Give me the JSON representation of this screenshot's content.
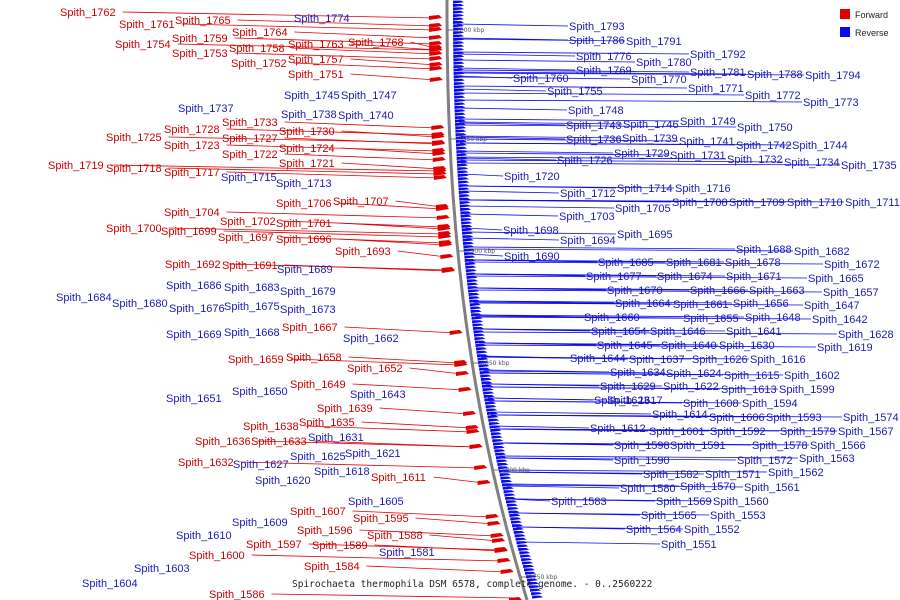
{
  "colors": {
    "forward": "#e00000",
    "reverse": "#0a0af0",
    "forward_text": "#cc0000",
    "reverse_text": "#1a1ab3",
    "backbone": "#808080"
  },
  "legend": {
    "forward": "Forward",
    "reverse": "Reverse"
  },
  "caption": "Spirochaeta thermophila DSM 6578, complete genome. - 0..2560222",
  "ticks": [
    "2000 kbp",
    "1950 kbp",
    "1900 kbp",
    "1850 kbp",
    "1800 kbp",
    "1750 kbp"
  ],
  "forward_genes": [
    "Spith_1762",
    "Spith_1761",
    "Spith_1765",
    "Spith_1764",
    "Spith_1759",
    "Spith_1754",
    "Spith_1758",
    "Spith_1763",
    "Spith_1768",
    "Spith_1753",
    "Spith_1757",
    "Spith_1752",
    "Spith_1751",
    "Spith_1733",
    "Spith_1728",
    "Spith_1730",
    "Spith_1725",
    "Spith_1727",
    "Spith_1723",
    "Spith_1724",
    "Spith_1722",
    "Spith_1721",
    "Spith_1719",
    "Spith_1718",
    "Spith_1717",
    "Spith_1706",
    "Spith_1707",
    "Spith_1704",
    "Spith_1702",
    "Spith_1701",
    "Spith_1700",
    "Spith_1699",
    "Spith_1697",
    "Spith_1696",
    "Spith_1693",
    "Spith_1692",
    "Spith_1691",
    "Spith_1667",
    "Spith_1659",
    "Spith_1658",
    "Spith_1652",
    "Spith_1649",
    "Spith_1639",
    "Spith_1638",
    "Spith_1635",
    "Spith_1636",
    "Spith_1633",
    "Spith_1632",
    "Spith_1611",
    "Spith_1607",
    "Spith_1595",
    "Spith_1596",
    "Spith_1597",
    "Spith_1589",
    "Spith_1588",
    "Spith_1600",
    "Spith_1584",
    "Spith_1586"
  ],
  "reverse_genes": [
    "Spith_1774",
    "Spith_1793",
    "Spith_1786",
    "Spith_1791",
    "Spith_1792",
    "Spith_1776",
    "Spith_1780",
    "Spith_1769",
    "Spith_1770",
    "Spith_1781",
    "Spith_1788",
    "Spith_1794",
    "Spith_1760",
    "Spith_1755",
    "Spith_1771",
    "Spith_1772",
    "Spith_1773",
    "Spith_1745",
    "Spith_1747",
    "Spith_1737",
    "Spith_1738",
    "Spith_1740",
    "Spith_1748",
    "Spith_1743",
    "Spith_1746",
    "Spith_1749",
    "Spith_1750",
    "Spith_1736",
    "Spith_1739",
    "Spith_1741",
    "Spith_1742",
    "Spith_1744",
    "Spith_1729",
    "Spith_1731",
    "Spith_1732",
    "Spith_1734",
    "Spith_1735",
    "Spith_1726",
    "Spith_1715",
    "Spith_1713",
    "Spith_1720",
    "Spith_1712",
    "Spith_1714",
    "Spith_1716",
    "Spith_1705",
    "Spith_1708",
    "Spith_1709",
    "Spith_1710",
    "Spith_1711",
    "Spith_1703",
    "Spith_1698",
    "Spith_1695",
    "Spith_1694",
    "Spith_1690",
    "Spith_1688",
    "Spith_1682",
    "Spith_1685",
    "Spith_1681",
    "Spith_1678",
    "Spith_1672",
    "Spith_1689",
    "Spith_1677",
    "Spith_1674",
    "Spith_1671",
    "Spith_1665",
    "Spith_1686",
    "Spith_1683",
    "Spith_1679",
    "Spith_1670",
    "Spith_1666",
    "Spith_1663",
    "Spith_1657",
    "Spith_1684",
    "Spith_1680",
    "Spith_1676",
    "Spith_1675",
    "Spith_1664",
    "Spith_1661",
    "Spith_1656",
    "Spith_1647",
    "Spith_1673",
    "Spith_1660",
    "Spith_1655",
    "Spith_1648",
    "Spith_1642",
    "Spith_1669",
    "Spith_1668",
    "Spith_1654",
    "Spith_1646",
    "Spith_1641",
    "Spith_1628",
    "Spith_1662",
    "Spith_1645",
    "Spith_1640",
    "Spith_1630",
    "Spith_1619",
    "Spith_1644",
    "Spith_1637",
    "Spith_1626",
    "Spith_1616",
    "Spith_1634",
    "Spith_1624",
    "Spith_1615",
    "Spith_1602",
    "Spith_1650",
    "Spith_1629",
    "Spith_1622",
    "Spith_1613",
    "Spith_1599",
    "Spith_1651",
    "Spith_1643",
    "Spith_1617",
    "Spith_1608",
    "Spith_1594",
    "Spith_1623",
    "Spith_1614",
    "Spith_1606",
    "Spith_1593",
    "Spith_1574",
    "Spith_1631",
    "Spith_1612",
    "Spith_1601",
    "Spith_1592",
    "Spith_1579",
    "Spith_1567",
    "Spith_1598",
    "Spith_1591",
    "Spith_1578",
    "Spith_1566",
    "Spith_1625",
    "Spith_1621",
    "Spith_1590",
    "Spith_1572",
    "Spith_1563",
    "Spith_1627",
    "Spith_1618",
    "Spith_1582",
    "Spith_1571",
    "Spith_1562",
    "Spith_1620",
    "Spith_1580",
    "Spith_1570",
    "Spith_1561",
    "Spith_1583",
    "Spith_1569",
    "Spith_1560",
    "Spith_1605",
    "Spith_1565",
    "Spith_1553",
    "Spith_1609",
    "Spith_1564",
    "Spith_1552",
    "Spith_1610",
    "Spith_1581",
    "Spith_1551",
    "Spith_1603",
    "Spith_1604"
  ]
}
